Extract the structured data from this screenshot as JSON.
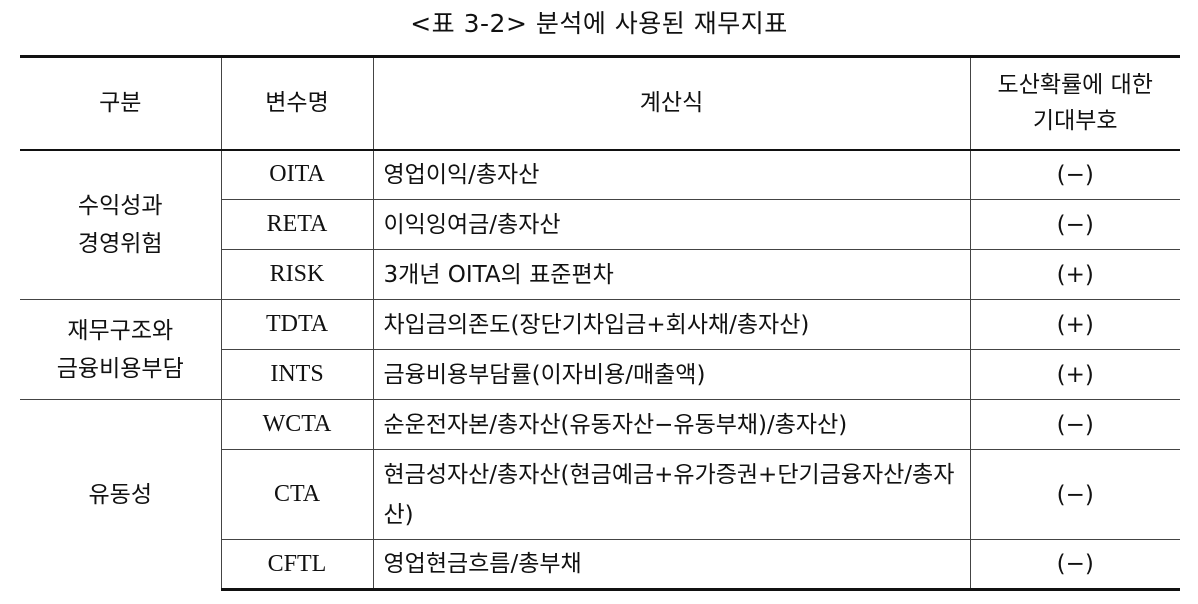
{
  "caption": "<표 3-2> 분석에 사용된 재무지표",
  "headers": {
    "category": "구분",
    "variable": "변수명",
    "formula": "계산식",
    "sign_line1": "도산확률에 대한",
    "sign_line2": "기대부호"
  },
  "groups": [
    {
      "line1": "수익성과",
      "line2": "경영위험"
    },
    {
      "line1": "재무구조와",
      "line2": "금융비용부담"
    },
    {
      "line1": "유동성",
      "line2": ""
    }
  ],
  "rows": [
    {
      "variable": "OITA",
      "formula": "영업이익/총자산",
      "sign": "(−)"
    },
    {
      "variable": "RETA",
      "formula": "이익잉여금/총자산",
      "sign": "(−)"
    },
    {
      "variable": "RISK",
      "formula": "3개년 OITA의 표준편차",
      "sign": "(+)"
    },
    {
      "variable": "TDTA",
      "formula": "차입금의존도(장단기차입금+회사채/총자산)",
      "sign": "(+)"
    },
    {
      "variable": "INTS",
      "formula": "금융비용부담률(이자비용/매출액)",
      "sign": "(+)"
    },
    {
      "variable": "WCTA",
      "formula": "순운전자본/총자산(유동자산−유동부채)/총자산)",
      "sign": "(−)"
    },
    {
      "variable": "CTA",
      "formula": "현금성자산/총자산(현금예금+유가증권+단기금융자산/총자산)",
      "sign": "(−)"
    },
    {
      "variable": "CFTL",
      "formula": "영업현금흐름/총부채",
      "sign": "(−)"
    }
  ]
}
